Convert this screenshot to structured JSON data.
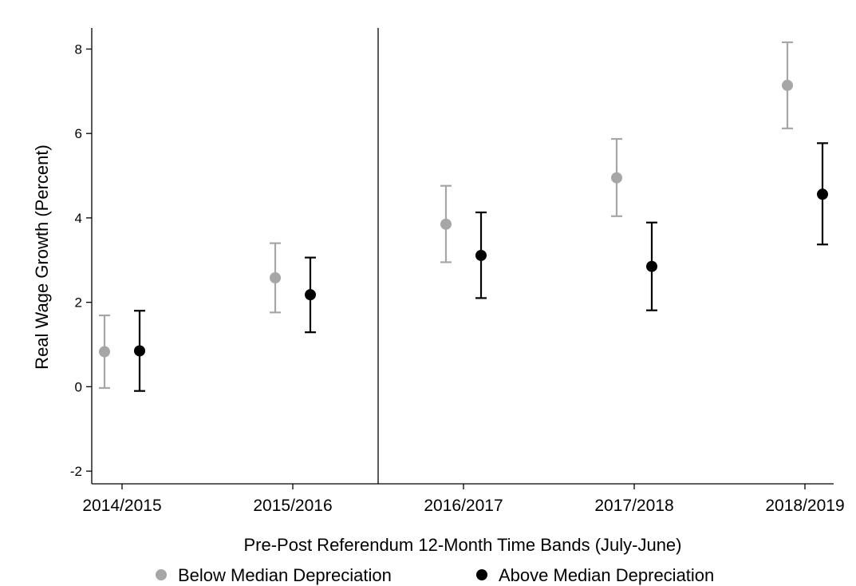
{
  "chart_data": {
    "type": "scatter",
    "subtype": "point-estimate-with-error-bars",
    "categories": [
      "2014/2015",
      "2015/2016",
      "2016/2017",
      "2017/2018",
      "2018/2019"
    ],
    "xlabel": "Pre-Post Referendum 12-Month Time Bands (July-June)",
    "ylabel": "Real Wage Growth (Percent)",
    "ylim": [
      -2.3,
      8.5
    ],
    "yticks": [
      -2,
      0,
      2,
      4,
      6,
      8
    ],
    "grid": false,
    "reference_line_between": [
      "2015/2016",
      "2016/2017"
    ],
    "legend_position": "bottom",
    "series": [
      {
        "name": "Below Median Depreciation",
        "color": "#a6a6a6",
        "values": [
          0.83,
          2.58,
          3.85,
          4.95,
          7.14
        ],
        "ci_low": [
          -0.03,
          1.76,
          2.95,
          4.04,
          6.12
        ],
        "ci_high": [
          1.69,
          3.4,
          4.76,
          5.87,
          8.16
        ]
      },
      {
        "name": "Above Median Depreciation",
        "color": "#000000",
        "values": [
          0.85,
          2.18,
          3.11,
          2.85,
          4.56
        ],
        "ci_low": [
          -0.1,
          1.29,
          2.1,
          1.81,
          3.37
        ],
        "ci_high": [
          1.8,
          3.06,
          4.13,
          3.89,
          5.77
        ]
      }
    ]
  }
}
